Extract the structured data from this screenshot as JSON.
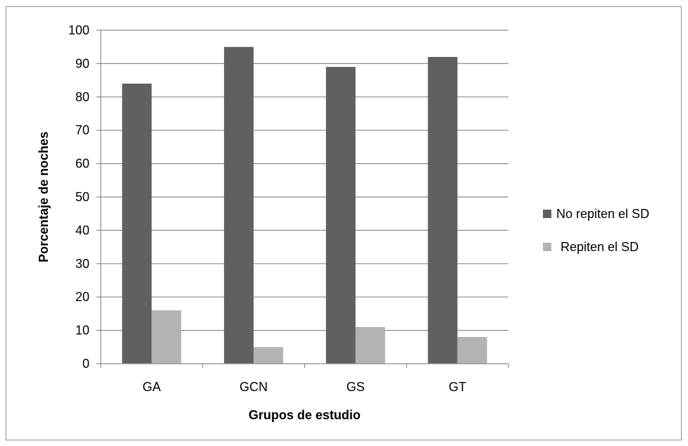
{
  "chart_data": {
    "type": "bar",
    "title": "",
    "xlabel": "Grupos de estudio",
    "ylabel": "Porcentaje de noches",
    "categories": [
      "GA",
      "GCN",
      "GS",
      "GT"
    ],
    "series": [
      {
        "name": "No repiten el SD",
        "values": [
          84,
          95,
          89,
          92
        ],
        "color": "#606060"
      },
      {
        "name": "Repiten el SD",
        "values": [
          16,
          5,
          11,
          8
        ],
        "color": "#b3b3b3"
      }
    ],
    "ylim": [
      0,
      100
    ],
    "yticks": [
      "0",
      "10",
      "20",
      "30",
      "40",
      "50",
      "60",
      "70",
      "80",
      "90",
      "100"
    ],
    "grid": true,
    "legend_position": "right"
  }
}
